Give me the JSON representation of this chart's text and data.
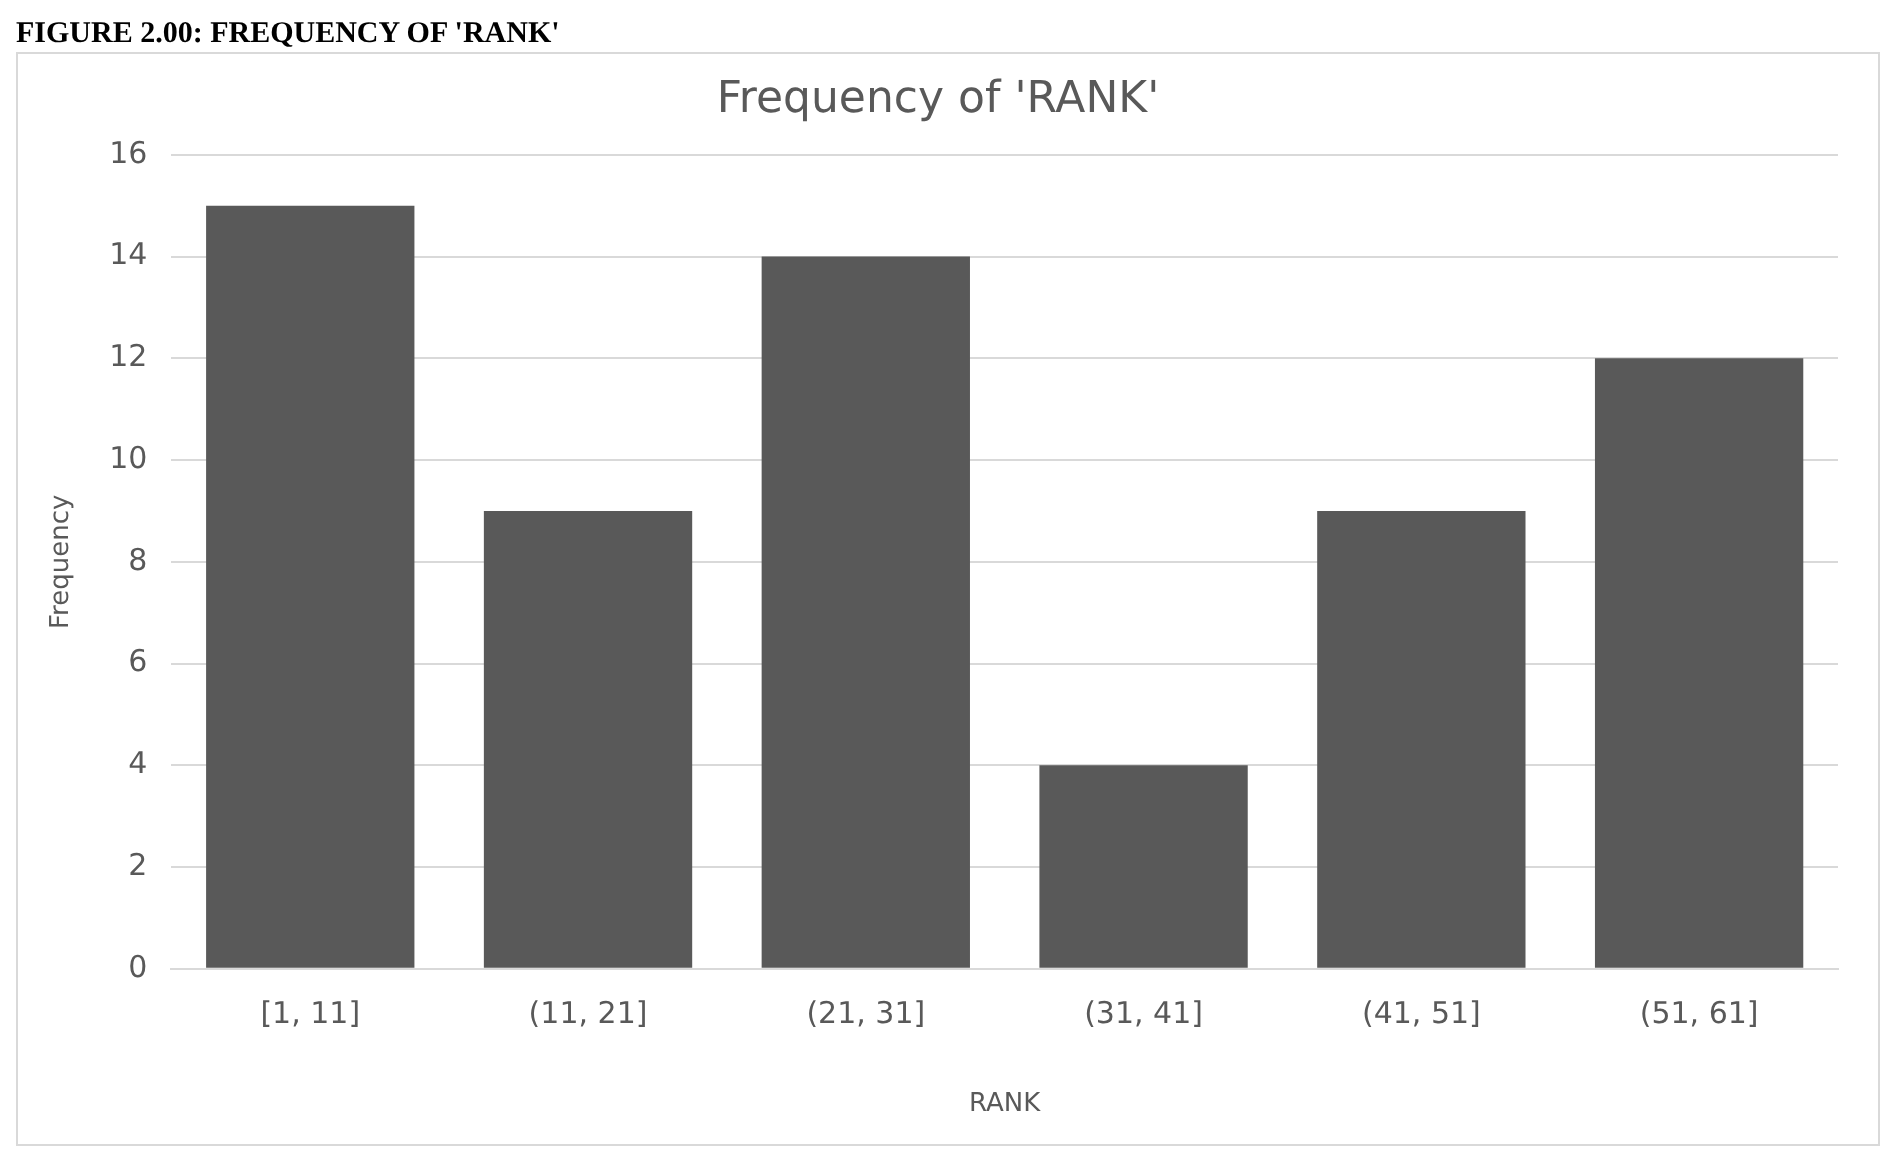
{
  "chart_data": {
    "type": "bar",
    "title": "Frequency of 'RANK'",
    "xlabel": "RANK",
    "ylabel": "Frequency",
    "annotations": [
      "FIGURE 2.00: FREQUENCY OF 'RANK'"
    ],
    "categories": [
      "[1, 11]",
      "(11, 21]",
      "(21, 31]",
      "(31, 41]",
      "(41, 51]",
      "(51, 61]"
    ],
    "values": [
      15,
      9,
      14,
      4,
      9,
      12
    ],
    "color": "#595959",
    "ylim": [
      0,
      16
    ],
    "yticks": [
      0,
      2,
      4,
      6,
      8,
      10,
      12,
      14,
      16
    ],
    "grid": "y",
    "legend": false
  }
}
